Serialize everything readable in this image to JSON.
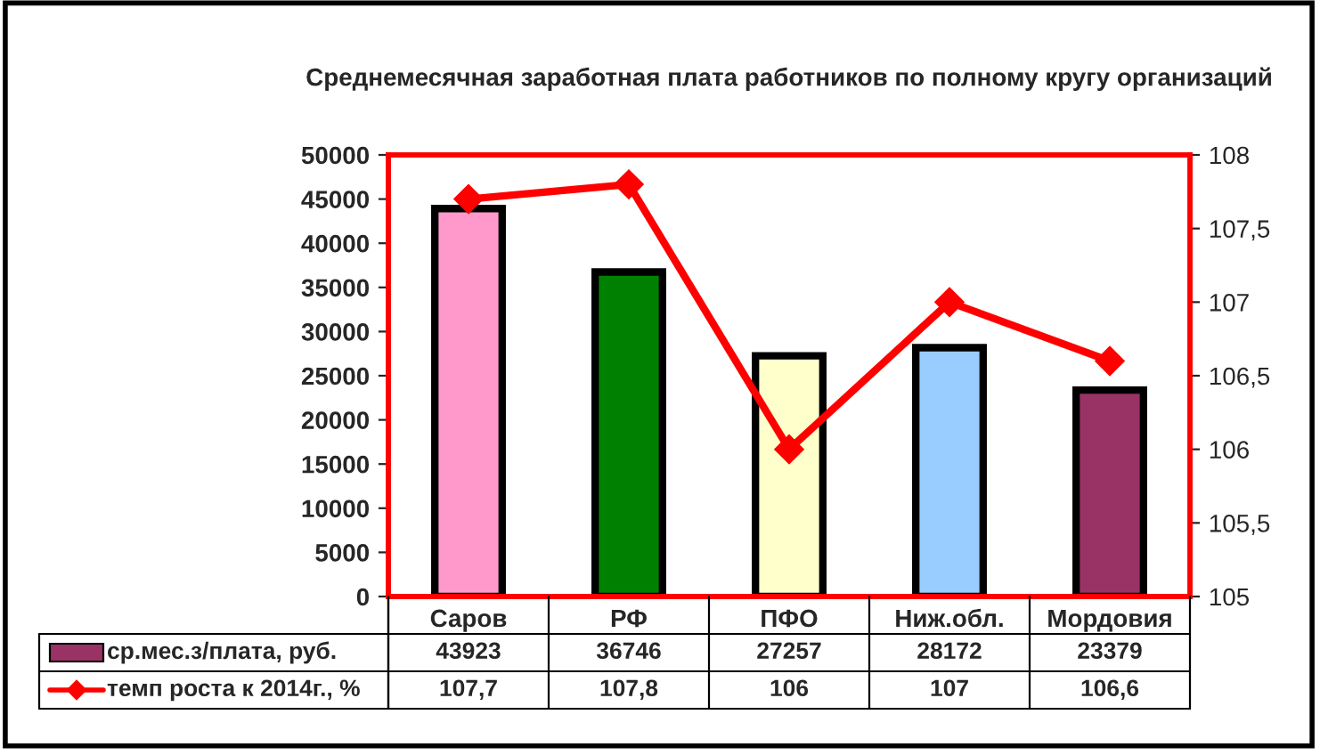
{
  "chart_data": {
    "type": "bar",
    "title": "Среднемесячная заработная плата работников по полному кругу организаций",
    "categories": [
      "Саров",
      "РФ",
      "ПФО",
      "Ниж.обл.",
      "Мордовия"
    ],
    "series": [
      {
        "name": "ср.мес.з/плата, руб.",
        "color": "#993366",
        "colors": [
          "#ff99cc",
          "#008000",
          "#ffffcc",
          "#99ccff",
          "#993366"
        ],
        "values": [
          43923,
          36746,
          27257,
          28172,
          23379
        ],
        "value_labels": [
          "43923",
          "36746",
          "27257",
          "28172",
          "23379"
        ]
      },
      {
        "name": "темп роста к 2014г., %",
        "type": "line",
        "axis": "y2",
        "color": "#ff0000",
        "values": [
          107.7,
          107.8,
          106,
          107,
          106.6
        ],
        "value_labels": [
          "107,7",
          "107,8",
          "106",
          "107",
          "106,6"
        ]
      }
    ],
    "ylim": [
      0,
      50000
    ],
    "yticks": [
      0,
      5000,
      10000,
      15000,
      20000,
      25000,
      30000,
      35000,
      40000,
      45000,
      50000
    ],
    "y2lim": [
      105,
      108
    ],
    "y2ticks": [
      105,
      {
        "value": 105.5,
        "label": "105,5"
      },
      106,
      {
        "value": 106.5,
        "label": "106,5"
      },
      107,
      {
        "value": 107.5,
        "label": "107,5"
      },
      108
    ],
    "marker": "diamond",
    "line_style": "solid",
    "grid": false,
    "legend": "bottom"
  }
}
